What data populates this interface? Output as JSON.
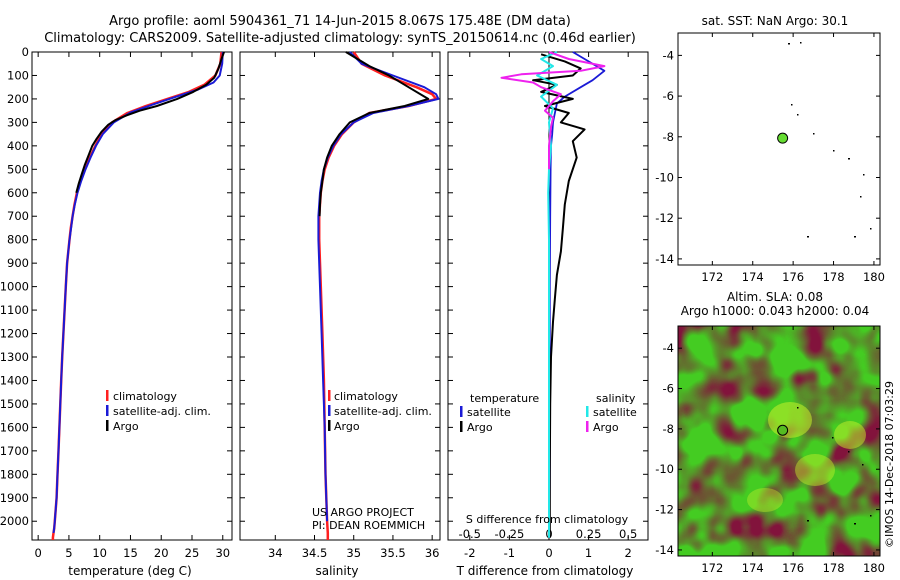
{
  "header": {
    "line1": "Argo profile: aoml 5904361_71 14-Jun-2015 8.067S 175.48E (DM data)",
    "line2": "Climatology: CARS2009. Satellite-adjusted climatology: synTS_20150614.nc (0.46d earlier)"
  },
  "colors": {
    "climatology": "#ff2020",
    "satellite": "#1a1ad6",
    "argo": "#000000",
    "sat_salinity": "#22e8e8",
    "argo_salinity": "#ee22ee",
    "marker": "#66dd33",
    "map_fill": "#44cc22"
  },
  "credits": {
    "project": "US ARGO PROJECT",
    "pi": "PI: DEAN ROEMMICH",
    "timestamp": "©IMOS 14-Dec-2018 07:03:29"
  },
  "chart_data": [
    {
      "type": "line",
      "name": "temperature-profile",
      "xlabel": "temperature (deg C)",
      "ylabel": "",
      "xlim": [
        -1,
        31.5
      ],
      "ylim": [
        2080,
        0
      ],
      "xticks": [
        0,
        5,
        10,
        15,
        20,
        25,
        30
      ],
      "xtick_labels": [
        "0",
        "5",
        "10",
        "15",
        "20",
        "25",
        "30"
      ],
      "yticks": [
        0,
        100,
        200,
        300,
        400,
        500,
        600,
        700,
        800,
        900,
        1000,
        1100,
        1200,
        1300,
        1400,
        1500,
        1600,
        1700,
        1800,
        1900,
        2000
      ],
      "ytick_labels": [
        "0",
        "100",
        "200",
        "300",
        "400",
        "500",
        "600",
        "700",
        "800",
        "900",
        "1000",
        "1100",
        "1200",
        "1300",
        "1400",
        "1500",
        "1600",
        "1700",
        "1800",
        "1900",
        "2000"
      ],
      "legend": [
        "climatology",
        "satellite-adj. clim.",
        "Argo"
      ],
      "legend_position": "lower-right",
      "series": [
        {
          "name": "climatology",
          "x": [
            29.8,
            29.6,
            28.8,
            27.0,
            24.5,
            21.0,
            17.5,
            14.5,
            12.0,
            10.3,
            9.3,
            8.4,
            7.6,
            6.9,
            6.3,
            5.9,
            5.6,
            5.3,
            5.1,
            4.9,
            4.7,
            4.5,
            4.3,
            4.1,
            3.9,
            3.75,
            3.6,
            3.45,
            3.3,
            3.15,
            3.0,
            2.85,
            2.7,
            2.6,
            2.5,
            2.45,
            2.4,
            2.4
          ],
          "y": [
            0,
            50,
            100,
            140,
            170,
            200,
            230,
            260,
            300,
            350,
            400,
            450,
            500,
            550,
            600,
            650,
            700,
            750,
            800,
            850,
            900,
            1000,
            1100,
            1200,
            1300,
            1400,
            1500,
            1600,
            1700,
            1800,
            1900,
            1950,
            2000,
            2030,
            2050,
            2060,
            2070,
            2080
          ]
        },
        {
          "name": "satellite-adj. clim.",
          "x": [
            30.0,
            29.9,
            29.5,
            28.5,
            26.0,
            22.5,
            18.5,
            15.0,
            12.3,
            10.5,
            9.4,
            8.5,
            7.7,
            7.0,
            6.4,
            5.95,
            5.6,
            5.35,
            5.1,
            4.9,
            4.7,
            4.5,
            4.3,
            4.1,
            3.9,
            3.75,
            3.6,
            3.45,
            3.3,
            3.15,
            3.0,
            2.85,
            2.7,
            2.6,
            2.5
          ],
          "y": [
            0,
            50,
            100,
            130,
            160,
            190,
            225,
            258,
            300,
            350,
            400,
            450,
            500,
            550,
            600,
            650,
            700,
            750,
            800,
            850,
            900,
            1000,
            1100,
            1200,
            1300,
            1400,
            1500,
            1600,
            1700,
            1800,
            1900,
            1950,
            2000,
            2030,
            2050
          ]
        },
        {
          "name": "Argo",
          "x": [
            30.2,
            29.8,
            29.3,
            28.6,
            27.3,
            25.2,
            22.6,
            19.3,
            16.5,
            14.4,
            12.6,
            11.4,
            10.3,
            9.5,
            8.8,
            8.2,
            7.6,
            7.1,
            6.6,
            6.2
          ],
          "y": [
            0,
            30,
            70,
            110,
            140,
            170,
            200,
            230,
            250,
            270,
            290,
            310,
            340,
            370,
            400,
            440,
            480,
            520,
            560,
            600
          ]
        }
      ]
    },
    {
      "type": "line",
      "name": "salinity-profile",
      "xlabel": "salinity",
      "ylabel": "",
      "xlim": [
        33.55,
        36.1
      ],
      "ylim": [
        2080,
        0
      ],
      "xticks": [
        34,
        34.5,
        35,
        35.5,
        36
      ],
      "xtick_labels": [
        "34",
        "34.5",
        "35",
        "35.5",
        "36"
      ],
      "legend": [
        "climatology",
        "satellite-adj. clim.",
        "Argo"
      ],
      "legend_position": "lower-right",
      "series": [
        {
          "name": "climatology",
          "x": [
            35.0,
            35.1,
            35.4,
            35.8,
            36.0,
            36.05,
            35.7,
            35.2,
            35.0,
            34.85,
            34.75,
            34.68,
            34.63,
            34.6,
            34.58,
            34.57,
            34.56,
            34.56,
            34.57,
            34.58,
            34.6,
            34.62,
            34.63,
            34.64,
            34.65,
            34.66,
            34.67,
            34.67
          ],
          "y": [
            0,
            50,
            100,
            150,
            180,
            200,
            230,
            260,
            300,
            350,
            400,
            450,
            500,
            550,
            600,
            650,
            700,
            800,
            900,
            1000,
            1200,
            1400,
            1600,
            1800,
            1900,
            2000,
            2050,
            2080
          ]
        },
        {
          "name": "satellite-adj. clim.",
          "x": [
            34.95,
            35.1,
            35.5,
            35.9,
            36.05,
            36.08,
            35.7,
            35.25,
            35.0,
            34.84,
            34.74,
            34.67,
            34.62,
            34.59,
            34.57,
            34.56,
            34.55,
            34.55,
            34.56,
            34.57,
            34.59,
            34.61,
            34.63,
            34.64,
            34.65,
            34.66
          ],
          "y": [
            0,
            50,
            100,
            150,
            180,
            200,
            230,
            260,
            300,
            350,
            400,
            450,
            500,
            550,
            600,
            650,
            700,
            800,
            900,
            1000,
            1200,
            1400,
            1600,
            1800,
            1900,
            2000
          ]
        },
        {
          "name": "Argo",
          "x": [
            34.9,
            35.2,
            35.45,
            35.55,
            35.7,
            35.95,
            35.65,
            35.2,
            34.95,
            34.82,
            34.72,
            34.66,
            34.62,
            34.6,
            34.58,
            34.57,
            34.565
          ],
          "y": [
            0,
            60,
            100,
            120,
            150,
            200,
            230,
            260,
            300,
            350,
            400,
            450,
            500,
            550,
            600,
            650,
            700
          ]
        }
      ]
    },
    {
      "type": "line",
      "name": "difference-from-climatology",
      "xlabel": "T difference from climatology",
      "ylabel": "",
      "secondary_xlabel": "S difference from climatology",
      "xlim": [
        -2.55,
        2.5
      ],
      "ylim": [
        2080,
        0
      ],
      "xticks": [
        -2,
        -1,
        0,
        1,
        2
      ],
      "xtick_labels": [
        "-2",
        "-1",
        "0",
        "1",
        "2"
      ],
      "secondary_xticks": [
        -2,
        -1,
        0,
        1,
        2
      ],
      "secondary_xtick_labels": [
        "-0.5",
        "-0.25",
        "0",
        "0.25",
        "0.5"
      ],
      "legend": [
        "temperature",
        "satellite",
        "Argo",
        "salinity",
        "satellite",
        "Argo"
      ],
      "legend_position": "lower-center",
      "series": [
        {
          "name": "temperature satellite",
          "x": [
            0.6,
            1.0,
            1.4,
            1.1,
            0.8,
            0.4,
            0.2,
            0.15,
            0.1,
            0.08,
            0.05,
            0.04,
            0.03,
            0.02,
            0.02,
            0.02,
            0.01
          ],
          "y": [
            0,
            40,
            80,
            120,
            150,
            190,
            220,
            260,
            300,
            350,
            400,
            500,
            700,
            1000,
            1400,
            1800,
            2070
          ]
        },
        {
          "name": "temperature Argo",
          "x": [
            -0.2,
            0.4,
            0.8,
            0.6,
            -0.4,
            0.2,
            -0.2,
            0.6,
            -0.1,
            0.5,
            0.3,
            0.9,
            0.6,
            0.7,
            0.5,
            0.4,
            0.35,
            0.3,
            0.2,
            0.15,
            0.1,
            0.05,
            0.03,
            0.02,
            0.02
          ],
          "y": [
            10,
            40,
            70,
            100,
            120,
            140,
            170,
            200,
            230,
            260,
            300,
            330,
            380,
            450,
            550,
            650,
            750,
            850,
            950,
            1050,
            1150,
            1300,
            1500,
            1800,
            2070
          ]
        },
        {
          "name": "salinity satellite",
          "x": [
            0.2,
            -0.2,
            0.1,
            -0.3,
            0.2,
            -0.2,
            0.1,
            0.0,
            0.05,
            0.0,
            -0.02,
            0.0,
            0.0,
            0.0,
            0.0
          ],
          "y": [
            0,
            30,
            60,
            100,
            140,
            190,
            240,
            300,
            400,
            500,
            600,
            800,
            1200,
            1600,
            2070
          ]
        },
        {
          "name": "salinity Argo",
          "x": [
            0.0,
            0.5,
            1.4,
            0.8,
            -0.7,
            -1.2,
            -0.4,
            -0.2,
            0.3,
            0.1,
            -0.1,
            0.1,
            0.05,
            0.0,
            0.0
          ],
          "y": [
            0,
            30,
            60,
            80,
            95,
            110,
            130,
            150,
            180,
            210,
            250,
            280,
            320,
            400,
            500
          ]
        }
      ]
    },
    {
      "type": "scatter",
      "name": "sst-map",
      "title": "sat. SST: NaN Argo: 30.1",
      "xlim": [
        170.3,
        180.3
      ],
      "ylim": [
        -14.3,
        -2.9
      ],
      "xticks": [
        172,
        174,
        176,
        178,
        180
      ],
      "xtick_labels": [
        "172",
        "174",
        "176",
        "178",
        "180"
      ],
      "yticks": [
        -4,
        -6,
        -8,
        -10,
        -12,
        -14
      ],
      "ytick_labels": [
        "-4",
        "-6",
        "-8",
        "-10",
        "-12",
        "-14"
      ],
      "profile_location": {
        "lon": 175.48,
        "lat": -8.067
      }
    },
    {
      "type": "heatmap",
      "name": "sla-map",
      "title": "Altim. SLA: 0.08",
      "subtitle": "Argo h1000: 0.043 h2000: 0.04",
      "xlim": [
        170.3,
        180.3
      ],
      "ylim": [
        -14.3,
        -2.9
      ],
      "xticks": [
        172,
        174,
        176,
        178,
        180
      ],
      "xtick_labels": [
        "172",
        "174",
        "176",
        "178",
        "180"
      ],
      "yticks": [
        -4,
        -6,
        -8,
        -10,
        -12,
        -14
      ],
      "ytick_labels": [
        "-4",
        "-6",
        "-8",
        "-10",
        "-12",
        "-14"
      ],
      "profile_location": {
        "lon": 175.48,
        "lat": -8.067
      }
    }
  ]
}
